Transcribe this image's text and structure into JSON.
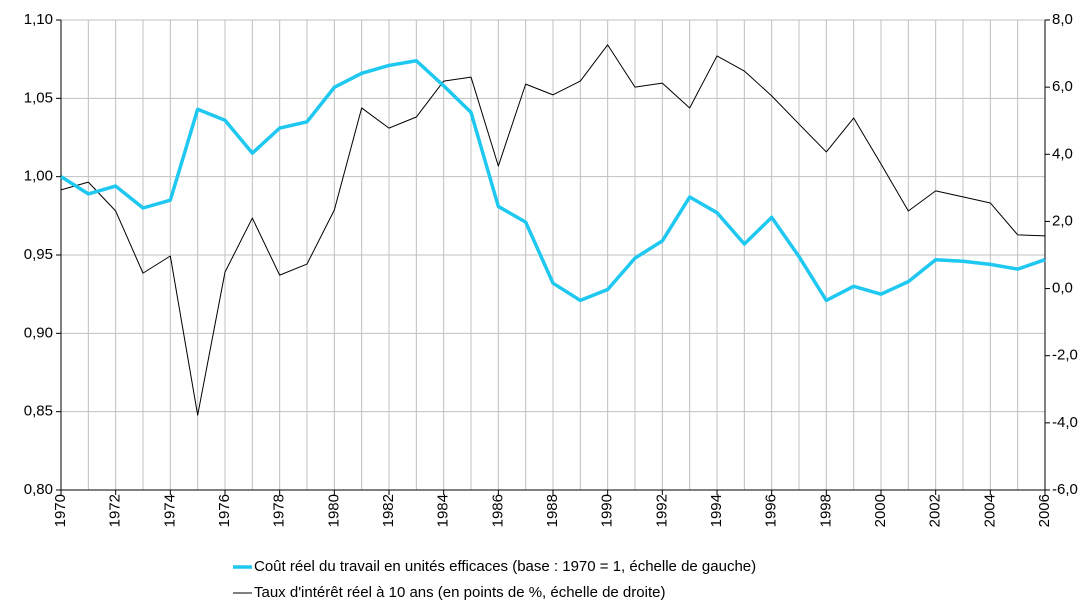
{
  "chart_data": {
    "type": "line",
    "x": [
      1970,
      1971,
      1972,
      1973,
      1974,
      1975,
      1976,
      1977,
      1978,
      1979,
      1980,
      1981,
      1982,
      1983,
      1984,
      1985,
      1986,
      1987,
      1988,
      1989,
      1990,
      1991,
      1992,
      1993,
      1994,
      1995,
      1996,
      1997,
      1998,
      1999,
      2000,
      2001,
      2002,
      2003,
      2004,
      2005,
      2006
    ],
    "xlim": [
      1970,
      2006
    ],
    "xticks": [
      1970,
      1972,
      1974,
      1976,
      1978,
      1980,
      1982,
      1984,
      1986,
      1988,
      1990,
      1992,
      1994,
      1996,
      1998,
      2000,
      2002,
      2004,
      2006
    ],
    "ylim": [
      0.8,
      1.1
    ],
    "yticks": [
      {
        "value": 0.8,
        "label": "0,80"
      },
      {
        "value": 0.85,
        "label": "0,85"
      },
      {
        "value": 0.9,
        "label": "0,90"
      },
      {
        "value": 0.95,
        "label": "0,95"
      },
      {
        "value": 1.0,
        "label": "1,00"
      },
      {
        "value": 1.05,
        "label": "1,05"
      },
      {
        "value": 1.1,
        "label": "1,10"
      }
    ],
    "y2lim": [
      -6,
      8
    ],
    "y2ticks": [
      {
        "value": -6,
        "label": "-6,0"
      },
      {
        "value": -4,
        "label": "-4,0"
      },
      {
        "value": -2,
        "label": "-2,0"
      },
      {
        "value": 0,
        "label": "0,0"
      },
      {
        "value": 2,
        "label": "2,0"
      },
      {
        "value": 4,
        "label": "4,0"
      },
      {
        "value": 6,
        "label": "6,0"
      },
      {
        "value": 8,
        "label": "8,0"
      }
    ],
    "grid": true,
    "series": [
      {
        "name": "Coût réel du travail en unités efficaces (base : 1970 = 1, échelle de gauche)",
        "color": "#1ec8f0",
        "values": [
          1.0,
          0.989,
          0.994,
          0.98,
          0.985,
          1.043,
          1.036,
          1.015,
          1.031,
          1.035,
          1.057,
          1.066,
          1.071,
          1.074,
          1.058,
          1.041,
          0.981,
          0.971,
          0.932,
          0.921,
          0.928,
          0.948,
          0.959,
          0.987,
          0.977,
          0.957,
          0.974,
          0.949,
          0.921,
          0.93,
          0.925,
          0.933,
          0.947,
          0.946,
          0.944,
          0.941,
          0.947
        ]
      },
      {
        "name": "Taux d'intérêt réel à 10 ans (en points de %, échelle de droite)",
        "color": "#000000",
        "axis": "y2",
        "values": [
          2.94,
          3.17,
          2.31,
          0.46,
          0.97,
          -3.77,
          0.49,
          2.1,
          0.4,
          0.73,
          2.34,
          5.38,
          4.78,
          5.11,
          6.18,
          6.3,
          3.65,
          6.09,
          5.77,
          6.18,
          7.26,
          6.0,
          6.12,
          5.38,
          6.93,
          6.48,
          5.74,
          4.9,
          4.07,
          5.08,
          3.71,
          2.31,
          2.91,
          2.73,
          2.55,
          1.6,
          1.57
        ]
      }
    ]
  }
}
